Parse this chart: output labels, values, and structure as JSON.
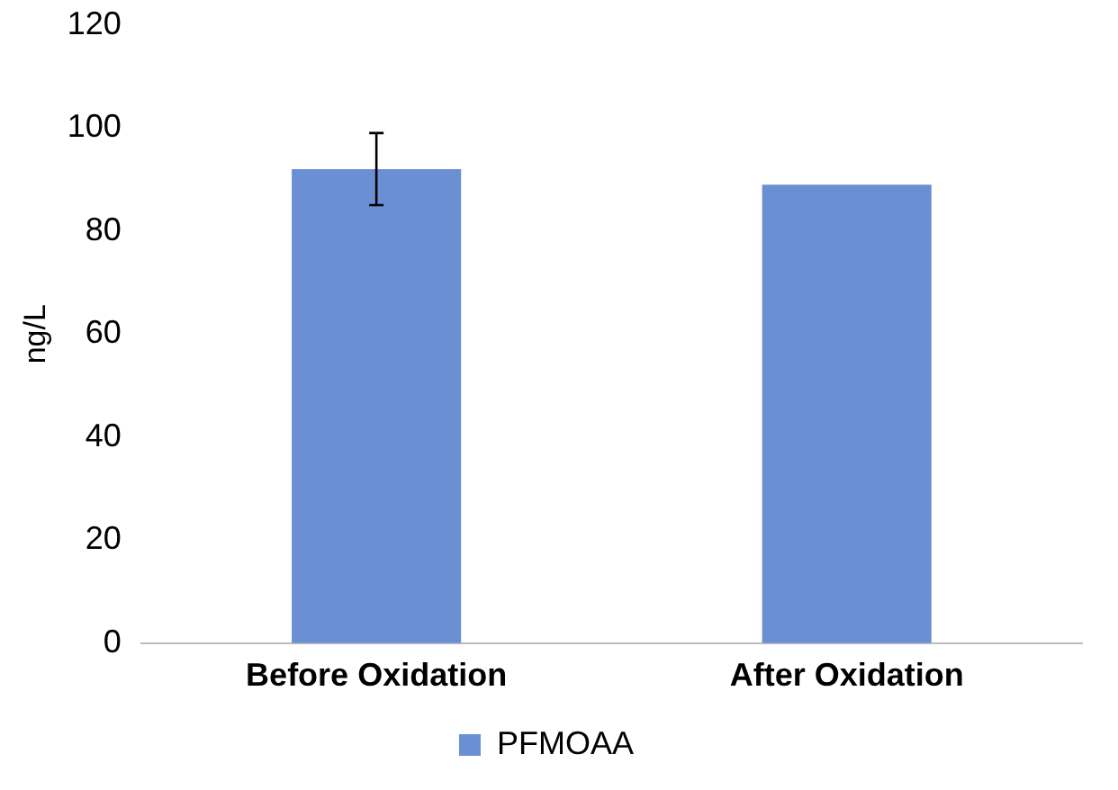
{
  "chart_data": {
    "type": "bar",
    "ylabel": "ng/L",
    "categories": [
      "Before Oxidation",
      "After Oxidation"
    ],
    "series": [
      {
        "name": "PFMOAA",
        "color": "#6a8fd3",
        "values": [
          92,
          89
        ],
        "errors": [
          7,
          null
        ]
      }
    ],
    "ylim": [
      0,
      120
    ],
    "yticks": [
      0,
      20,
      40,
      60,
      80,
      100,
      120
    ],
    "grid": false,
    "legend": "bottom"
  }
}
